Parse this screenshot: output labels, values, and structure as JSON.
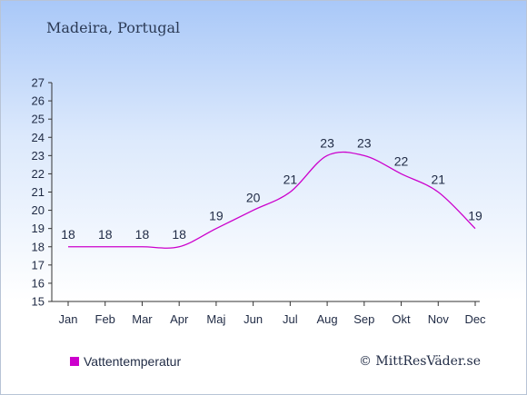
{
  "header": {
    "location": "Madeira, Portugal"
  },
  "legend": {
    "label": "Vattentemperatur",
    "color": "#cc00cc"
  },
  "footer": {
    "copyright": "© MittResVäder.se"
  },
  "chart_data": {
    "type": "line",
    "title": "",
    "xlabel": "",
    "ylabel": "",
    "categories": [
      "Jan",
      "Feb",
      "Mar",
      "Apr",
      "Maj",
      "Jun",
      "Jul",
      "Aug",
      "Sep",
      "Okt",
      "Nov",
      "Dec"
    ],
    "series": [
      {
        "name": "Vattentemperatur",
        "color": "#cc00cc",
        "values": [
          18,
          18,
          18,
          18,
          19,
          20,
          21,
          23,
          23,
          22,
          21,
          19
        ]
      }
    ],
    "ylim": [
      15,
      27
    ],
    "yticks": [
      15,
      16,
      17,
      18,
      19,
      20,
      21,
      22,
      23,
      24,
      25,
      26,
      27
    ],
    "grid": false,
    "legend_position": "bottom-left"
  }
}
